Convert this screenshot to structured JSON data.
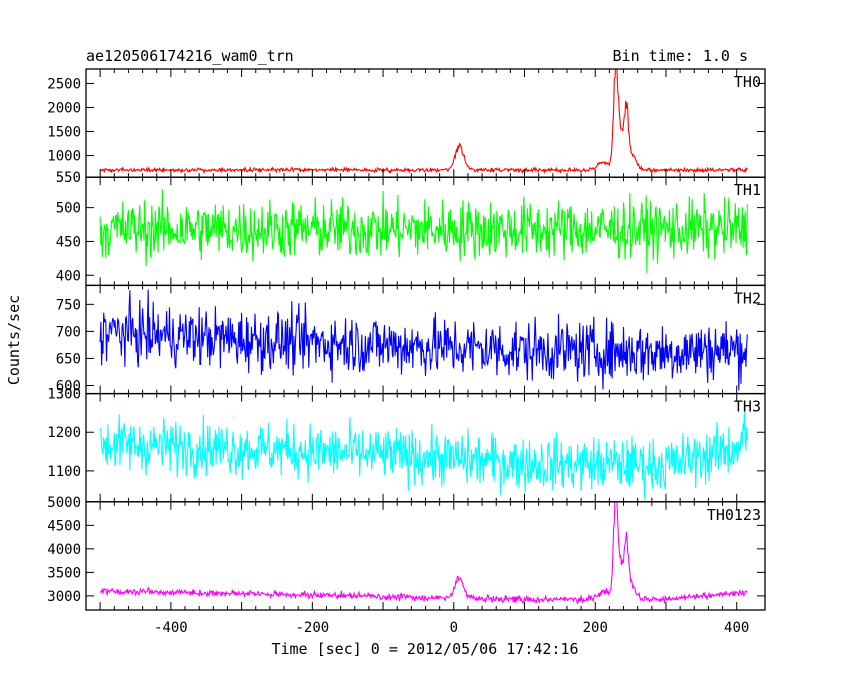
{
  "chart_data": {
    "type": "line",
    "title_left": "ae120506174216_wam0_trn",
    "title_right": "Bin time: 1.0 s",
    "xlabel": "Time [sec] 0 = 2012/05/06 17:42:16",
    "ylabel": "Counts/sec",
    "xlim": [
      -520,
      440
    ],
    "x_ticks": [
      -400,
      -200,
      0,
      200,
      400
    ],
    "x_range": [
      -500,
      415
    ],
    "panels": [
      {
        "name": "TH0",
        "color": "#ff0000",
        "ylim": [
          550,
          2800
        ],
        "y_ticks": [
          550,
          1000,
          1500,
          2000,
          2500
        ],
        "baseline": 700,
        "noise": 20,
        "peaks": [
          {
            "x": 8,
            "height": 500,
            "width": 6
          },
          {
            "x": 212,
            "height": 180,
            "width": 8
          },
          {
            "x": 229,
            "height": 2100,
            "width": 3
          },
          {
            "x": 236,
            "height": 700,
            "width": 4
          },
          {
            "x": 244,
            "height": 1100,
            "width": 3
          },
          {
            "x": 252,
            "height": 300,
            "width": 6
          }
        ]
      },
      {
        "name": "TH1",
        "color": "#00ff00",
        "ylim": [
          385,
          545
        ],
        "y_ticks": [
          400,
          450,
          500,
          550
        ],
        "baseline": 468,
        "noise": 22,
        "peaks": []
      },
      {
        "name": "TH2",
        "color": "#0000ff",
        "ylim": [
          585,
          785
        ],
        "y_ticks": [
          600,
          650,
          700,
          750
        ],
        "baseline_points": [
          [
            -500,
            700
          ],
          [
            -300,
            685
          ],
          [
            -100,
            675
          ],
          [
            100,
            665
          ],
          [
            300,
            662
          ],
          [
            415,
            668
          ]
        ],
        "noise": 28,
        "peaks": []
      },
      {
        "name": "TH3",
        "color": "#00ffff",
        "ylim": [
          1020,
          1300
        ],
        "y_ticks": [
          1100,
          1200,
          1300
        ],
        "baseline_points": [
          [
            -500,
            1170
          ],
          [
            -250,
            1155
          ],
          [
            -80,
            1140
          ],
          [
            100,
            1120
          ],
          [
            300,
            1115
          ],
          [
            400,
            1160
          ],
          [
            415,
            1200
          ]
        ],
        "noise": 35,
        "peaks": []
      },
      {
        "name": "TH0123",
        "color": "#ff00ff",
        "ylim": [
          2700,
          5000
        ],
        "y_ticks": [
          3000,
          3500,
          4000,
          4500,
          5000
        ],
        "baseline_points": [
          [
            -500,
            3100
          ],
          [
            -300,
            3050
          ],
          [
            -100,
            2990
          ],
          [
            100,
            2920
          ],
          [
            300,
            2930
          ],
          [
            415,
            3080
          ]
        ],
        "noise": 35,
        "peaks": [
          {
            "x": 8,
            "height": 450,
            "width": 6
          },
          {
            "x": 212,
            "height": 180,
            "width": 8
          },
          {
            "x": 229,
            "height": 2100,
            "width": 3
          },
          {
            "x": 236,
            "height": 700,
            "width": 4
          },
          {
            "x": 244,
            "height": 1100,
            "width": 3
          },
          {
            "x": 252,
            "height": 300,
            "width": 6
          }
        ]
      }
    ]
  }
}
